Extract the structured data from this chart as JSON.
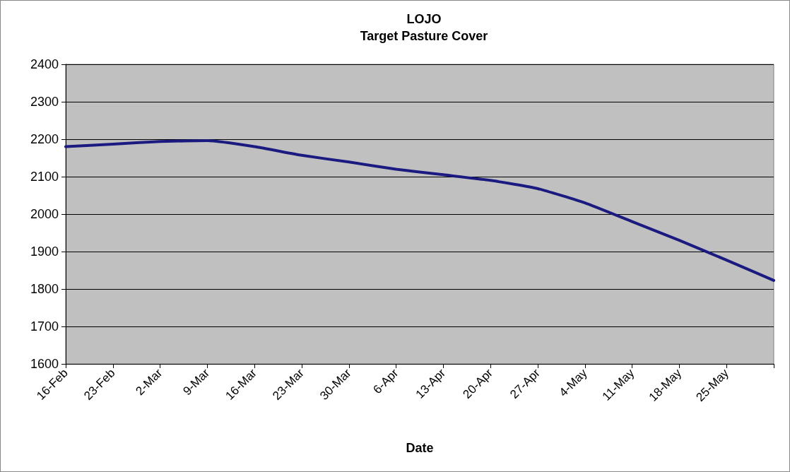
{
  "chart_data": {
    "type": "line",
    "title": "LOJO",
    "subtitle": "Target Pasture Cover",
    "xlabel": "Date",
    "categories": [
      "16-Feb",
      "23-Feb",
      "2-Mar",
      "9-Mar",
      "16-Mar",
      "23-Mar",
      "30-Mar",
      "6-Apr",
      "13-Apr",
      "20-Apr",
      "27-Apr",
      "4-May",
      "11-May",
      "18-May",
      "25-May",
      null
    ],
    "series": [
      {
        "color": "#1a1a80",
        "values": [
          2180,
          2187,
          2194,
          2196,
          2180,
          2157,
          2139,
          2120,
          2105,
          2090,
          2068,
          2030,
          1980,
          1930,
          1877,
          1823
        ]
      }
    ],
    "ylim": [
      1600,
      2400
    ],
    "yticks": [
      1600,
      1700,
      1800,
      1900,
      2000,
      2100,
      2200,
      2300,
      2400
    ],
    "grid": "y",
    "marker": "none",
    "line_style": "solid"
  }
}
